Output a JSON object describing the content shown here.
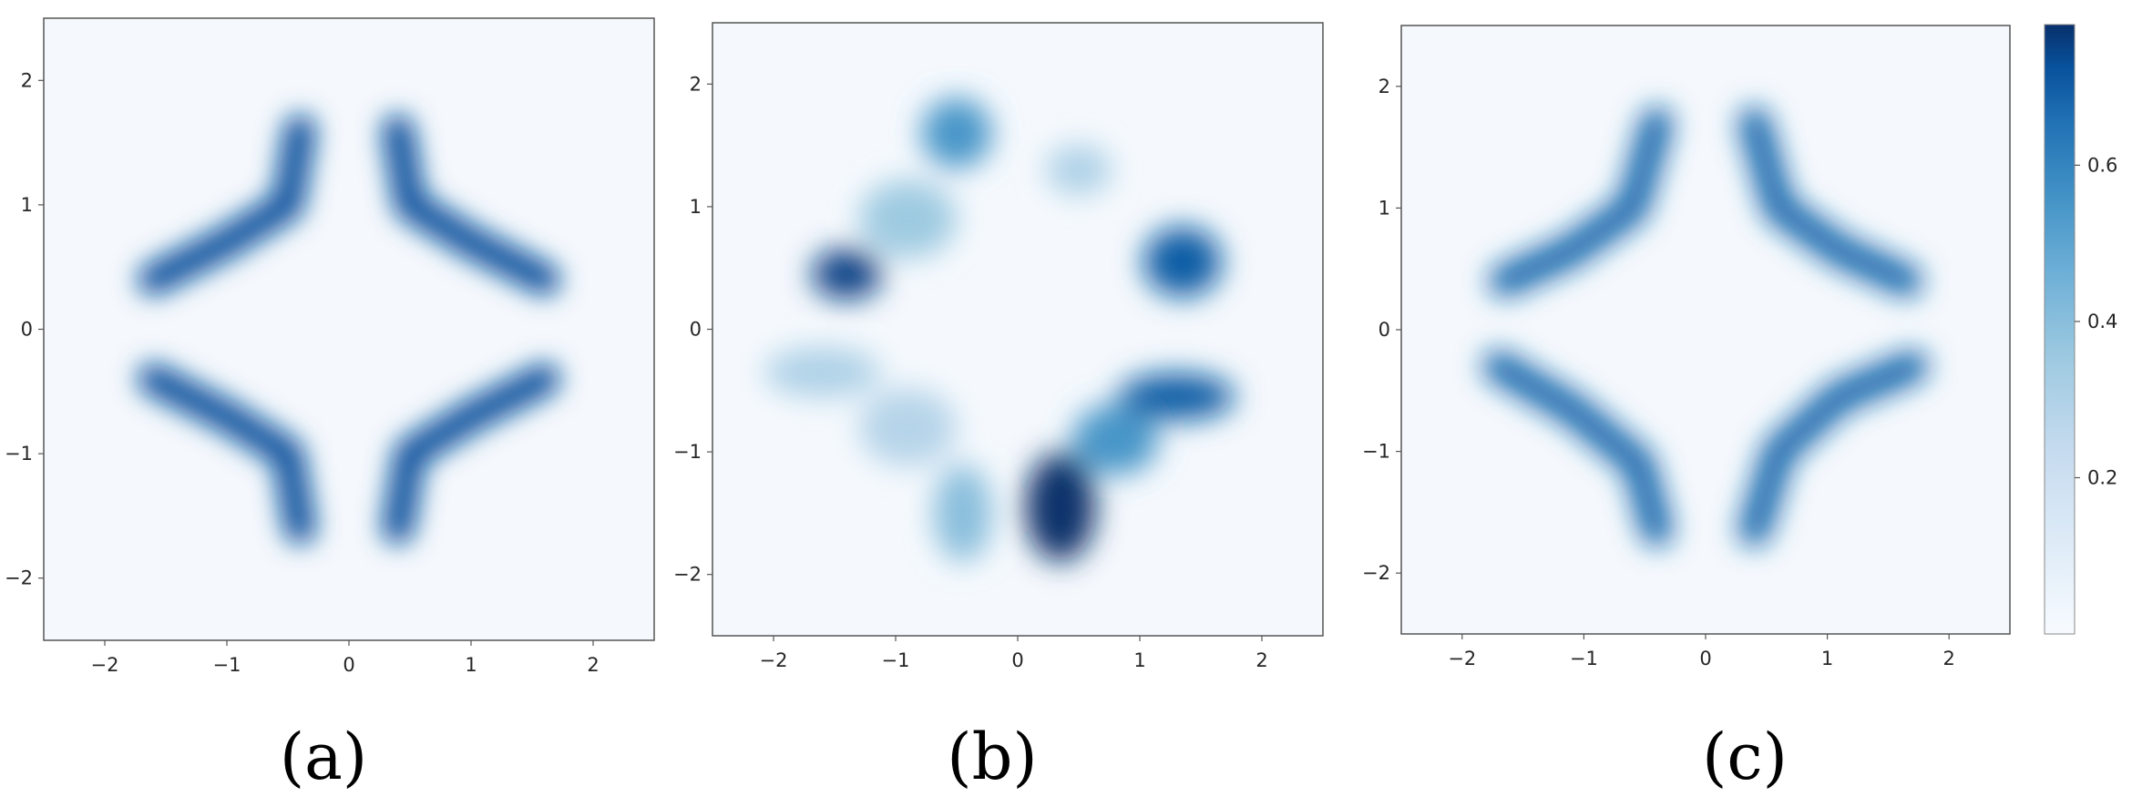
{
  "chart_data": {
    "type": "heatmap",
    "colormap": "Blues",
    "colors": {
      "low": "#f7fbff",
      "high": "#08306b",
      "frame": "#555555",
      "text": "#262626"
    },
    "colorbar": {
      "range": [
        0,
        0.78
      ],
      "ticks": [
        0.2,
        0.4,
        0.6
      ],
      "tick_labels": [
        "0.2",
        "0.4",
        "0.6"
      ]
    },
    "panels": [
      {
        "caption": "(a)",
        "x_range": [
          -2.5,
          2.5
        ],
        "y_range": [
          -2.5,
          2.5
        ],
        "x_ticks": [
          -2,
          -1,
          0,
          1,
          2
        ],
        "x_tick_labels": [
          "−2",
          "−1",
          "0",
          "1",
          "2"
        ],
        "y_ticks": [
          2,
          1,
          0,
          -1,
          -2
        ],
        "y_tick_labels": [
          "2",
          "1",
          "0",
          "−1",
          "−2"
        ],
        "density": {
          "shape": "four-lobed cross ring (symmetric)",
          "segments": [
            [
              [
                0.4,
                1.6
              ],
              [
                0.5,
                1.0
              ],
              [
                1.0,
                0.7
              ],
              [
                1.6,
                0.4
              ]
            ],
            [
              [
                -0.4,
                1.6
              ],
              [
                -0.5,
                1.0
              ],
              [
                -1.0,
                0.7
              ],
              [
                -1.6,
                0.4
              ]
            ],
            [
              [
                0.4,
                -1.6
              ],
              [
                0.5,
                -1.0
              ],
              [
                1.0,
                -0.7
              ],
              [
                1.6,
                -0.4
              ]
            ],
            [
              [
                -0.4,
                -1.6
              ],
              [
                -0.5,
                -1.0
              ],
              [
                -1.0,
                -0.7
              ],
              [
                -1.6,
                -0.4
              ]
            ]
          ],
          "peak": 0.72
        }
      },
      {
        "caption": "(b)",
        "x_range": [
          -2.5,
          2.5
        ],
        "y_range": [
          -2.5,
          2.5
        ],
        "x_ticks": [
          -2,
          -1,
          0,
          1,
          2
        ],
        "x_tick_labels": [
          "−2",
          "−1",
          "0",
          "1",
          "2"
        ],
        "y_ticks": [
          2,
          1,
          0,
          -1,
          -2
        ],
        "y_tick_labels": [
          "2",
          "1",
          "0",
          "−1",
          "−2"
        ],
        "density": {
          "shape": "distorted, fragmented ring",
          "blobs": [
            {
              "x": -0.5,
              "y": 1.6,
              "sx": 0.18,
              "sy": 0.18,
              "w": 0.55
            },
            {
              "x": -1.4,
              "y": 0.45,
              "sx": 0.18,
              "sy": 0.13,
              "w": 0.75
            },
            {
              "x": -0.9,
              "y": 0.9,
              "sx": 0.25,
              "sy": 0.2,
              "w": 0.35
            },
            {
              "x": 0.5,
              "y": 1.3,
              "sx": 0.17,
              "sy": 0.13,
              "w": 0.3
            },
            {
              "x": 1.35,
              "y": 0.55,
              "sx": 0.2,
              "sy": 0.18,
              "w": 0.7
            },
            {
              "x": 1.3,
              "y": -0.55,
              "sx": 0.3,
              "sy": 0.12,
              "w": 0.7
            },
            {
              "x": 0.8,
              "y": -0.9,
              "sx": 0.22,
              "sy": 0.18,
              "w": 0.55
            },
            {
              "x": 0.35,
              "y": -1.45,
              "sx": 0.18,
              "sy": 0.28,
              "w": 0.78
            },
            {
              "x": -1.6,
              "y": -0.35,
              "sx": 0.3,
              "sy": 0.13,
              "w": 0.3
            },
            {
              "x": -0.9,
              "y": -0.8,
              "sx": 0.25,
              "sy": 0.2,
              "w": 0.28
            },
            {
              "x": -0.45,
              "y": -1.5,
              "sx": 0.15,
              "sy": 0.25,
              "w": 0.4
            }
          ]
        }
      },
      {
        "caption": "(c)",
        "x_range": [
          -2.5,
          2.5
        ],
        "y_range": [
          -2.5,
          2.5
        ],
        "x_ticks": [
          -2,
          -1,
          0,
          1,
          2
        ],
        "x_tick_labels": [
          "−2",
          "−1",
          "0",
          "1",
          "2"
        ],
        "y_ticks": [
          2,
          1,
          0,
          -1,
          -2
        ],
        "y_tick_labels": [
          "2",
          "1",
          "0",
          "−1",
          "−2"
        ],
        "density": {
          "shape": "rotated cross ring",
          "segments": [
            [
              [
                -0.4,
                1.7
              ],
              [
                -0.6,
                1.0
              ],
              [
                -1.1,
                0.65
              ],
              [
                -1.65,
                0.4
              ]
            ],
            [
              [
                0.4,
                1.7
              ],
              [
                0.6,
                1.0
              ],
              [
                1.1,
                0.65
              ],
              [
                1.65,
                0.4
              ]
            ],
            [
              [
                -1.7,
                -0.3
              ],
              [
                -1.1,
                -0.65
              ],
              [
                -0.55,
                -1.1
              ],
              [
                -0.4,
                -1.65
              ]
            ],
            [
              [
                1.7,
                -0.3
              ],
              [
                1.1,
                -0.55
              ],
              [
                0.6,
                -1.0
              ],
              [
                0.4,
                -1.65
              ]
            ]
          ],
          "peak": 0.68
        }
      }
    ]
  }
}
